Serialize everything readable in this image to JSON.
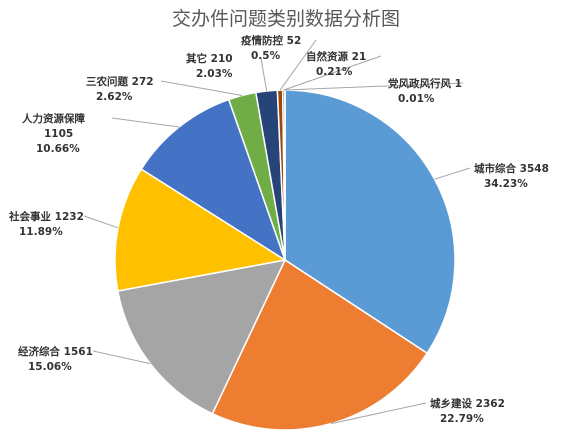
{
  "chart_data": {
    "type": "pie",
    "title": "交办件问题类别数据分析图",
    "slices": [
      {
        "name": "城市综合",
        "value": 3548,
        "percent": "34.23%",
        "color": "#5b9bd5"
      },
      {
        "name": "城乡建设",
        "value": 2362,
        "percent": "22.79%",
        "color": "#ed7d31"
      },
      {
        "name": "经济综合",
        "value": 1561,
        "percent": "15.06%",
        "color": "#a5a5a5"
      },
      {
        "name": "社会事业",
        "value": 1232,
        "percent": "11.89%",
        "color": "#ffc000"
      },
      {
        "name": "人力资源保障",
        "value": 1105,
        "percent": "10.66%",
        "color": "#4472c4"
      },
      {
        "name": "三农问题",
        "value": 272,
        "percent": "2.62%",
        "color": "#70ad47"
      },
      {
        "name": "其它",
        "value": 210,
        "percent": "2.03%",
        "color": "#264478"
      },
      {
        "name": "疫情防控",
        "value": 52,
        "percent": "0.5%",
        "color": "#9e480e"
      },
      {
        "name": "自然资源",
        "value": 21,
        "percent": "0.21%",
        "color": "#636363"
      },
      {
        "name": "党风政风行风",
        "value": 1,
        "percent": "0.01%",
        "color": "#997300"
      }
    ]
  }
}
